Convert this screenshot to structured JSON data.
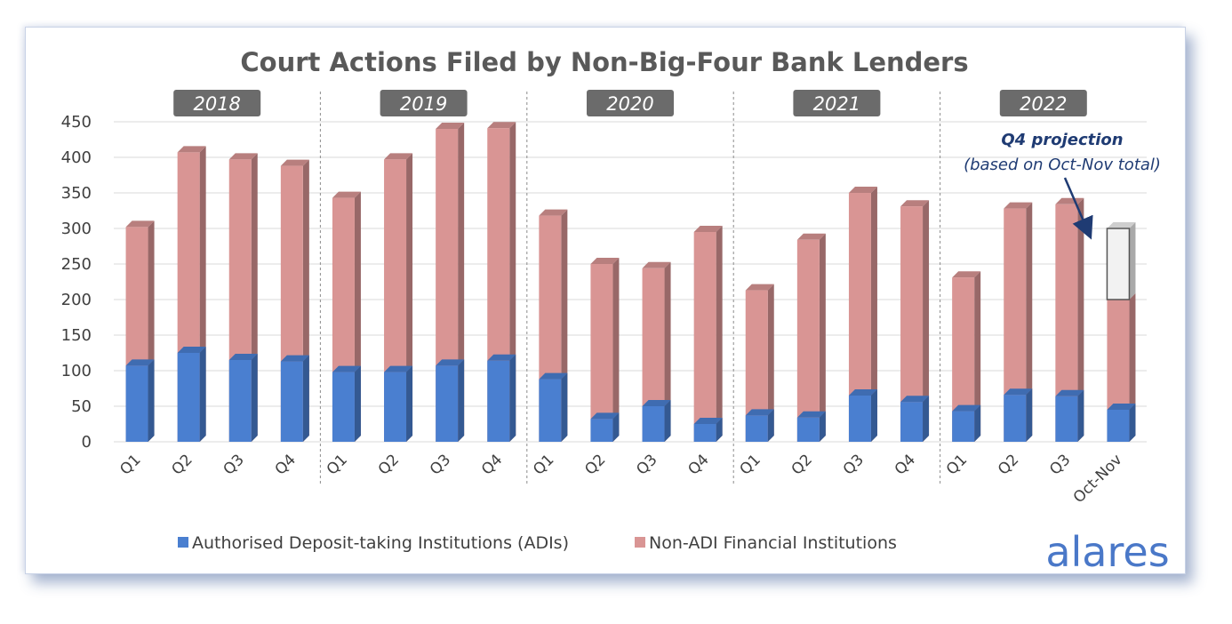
{
  "chart_data": {
    "type": "bar",
    "stacked": true,
    "title": "Court Actions Filed by Non-Big-Four Bank Lenders",
    "ylim": [
      0,
      450
    ],
    "yticks": [
      0,
      50,
      100,
      150,
      200,
      250,
      300,
      350,
      400,
      450
    ],
    "groups": [
      "2018",
      "2019",
      "2020",
      "2021",
      "2022"
    ],
    "categories": [
      "Q1",
      "Q2",
      "Q3",
      "Q4",
      "Q1",
      "Q2",
      "Q3",
      "Q4",
      "Q1",
      "Q2",
      "Q3",
      "Q4",
      "Q1",
      "Q2",
      "Q3",
      "Q4",
      "Q1",
      "Q2",
      "Q3",
      "Oct-Nov"
    ],
    "series": [
      {
        "name": "Authorised Deposit-taking Institutions (ADIs)",
        "color": "#4a7fd0",
        "values": [
          107,
          125,
          115,
          113,
          98,
          98,
          107,
          114,
          88,
          32,
          50,
          25,
          37,
          34,
          65,
          56,
          43,
          66,
          64,
          45
        ]
      },
      {
        "name": "Non-ADI Financial Institutions",
        "color": "#d99594",
        "values": [
          195,
          282,
          282,
          275,
          245,
          299,
          333,
          327,
          230,
          218,
          194,
          270,
          176,
          250,
          285,
          275,
          188,
          262,
          270,
          155
        ]
      }
    ],
    "projection": {
      "category": "Oct-Nov",
      "from": 200,
      "to": 300,
      "color": "#f2f2f2"
    },
    "annotation": {
      "title": "Q4 projection",
      "subtitle": "(based on Oct-Nov total)"
    },
    "legend_position": "bottom",
    "grid": true
  },
  "brand": {
    "logo_text": "alares"
  }
}
